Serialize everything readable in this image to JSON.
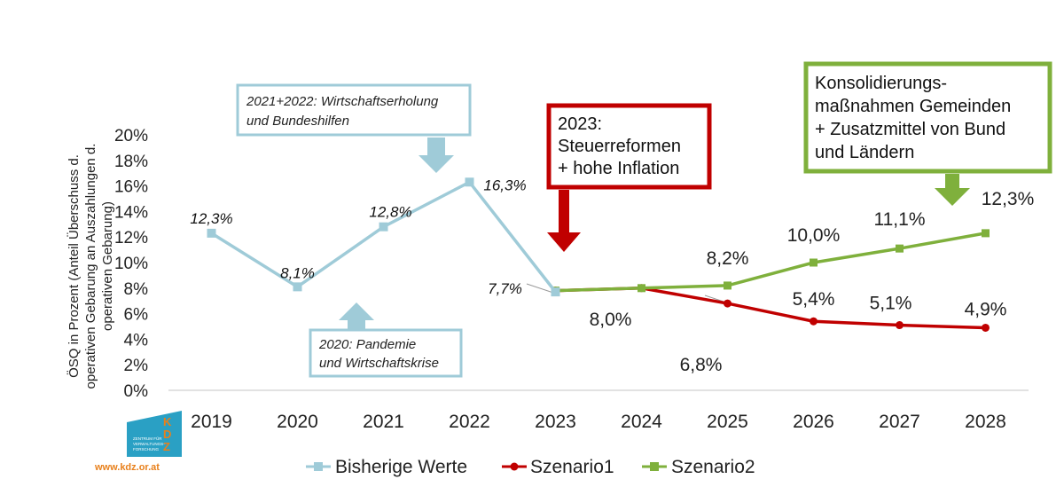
{
  "chart_data": {
    "type": "line",
    "categories": [
      "2019",
      "2020",
      "2021",
      "2022",
      "2023",
      "2024",
      "2025",
      "2026",
      "2027",
      "2028"
    ],
    "ylabel_lines": [
      "ÖSQ in Prozent (Anteil Überschuss d.",
      "operativen Gebarung an Auszahlungen d.",
      "operativen Gebarung)"
    ],
    "ylim": [
      0,
      20
    ],
    "yticks": [
      "0%",
      "2%",
      "4%",
      "6%",
      "8%",
      "10%",
      "12%",
      "14%",
      "16%",
      "18%",
      "20%"
    ],
    "grid": false,
    "legend_position": "bottom",
    "series": [
      {
        "name": "Bisherige Werte",
        "color": "#9fcbd8",
        "values": [
          12.3,
          8.1,
          12.8,
          16.3,
          7.7,
          null,
          null,
          null,
          null,
          null
        ],
        "labels": [
          "12,3%",
          "8,1%",
          "12,8%",
          "16,3%",
          "7,7%",
          "",
          "",
          "",
          "",
          ""
        ]
      },
      {
        "name": "Szenario1",
        "color": "#c00000",
        "values": [
          null,
          null,
          null,
          null,
          7.8,
          8.0,
          6.8,
          5.4,
          5.1,
          4.9
        ],
        "labels": [
          "",
          "",
          "",
          "",
          "",
          "",
          "6,8%",
          "5,4%",
          "5,1%",
          "4,9%"
        ]
      },
      {
        "name": "Szenario2",
        "color": "#7fb03c",
        "values": [
          null,
          null,
          null,
          null,
          7.8,
          8.0,
          8.2,
          10.0,
          11.1,
          12.3
        ],
        "labels": [
          "",
          "",
          "",
          "",
          "",
          "8,0%",
          "8,2%",
          "10,0%",
          "11,1%",
          "12,3%"
        ]
      }
    ],
    "annotations": [
      {
        "lines": [
          "2021+2022: Wirtschaftserholung",
          "und Bundeshilfen"
        ]
      },
      {
        "lines": [
          "2020: Pandemie",
          "und Wirtschaftskrise"
        ]
      },
      {
        "lines": [
          "2023:",
          "Steuerreformen",
          "+ hohe Inflation"
        ]
      },
      {
        "lines": [
          "Konsolidierungs-",
          "maßnahmen Gemeinden",
          "+ Zusatzmittel von Bund",
          "und Ländern"
        ]
      }
    ]
  },
  "logo": {
    "letters": [
      "K",
      "D",
      "Z"
    ],
    "subtitle_lines": [
      "ZENTRUM FÜR",
      "VERWALTUNGS-",
      "FORSCHUNG"
    ],
    "url": "www.kdz.or.at",
    "brand_color": "#2aa0c4",
    "accent_color": "#e8801c"
  }
}
